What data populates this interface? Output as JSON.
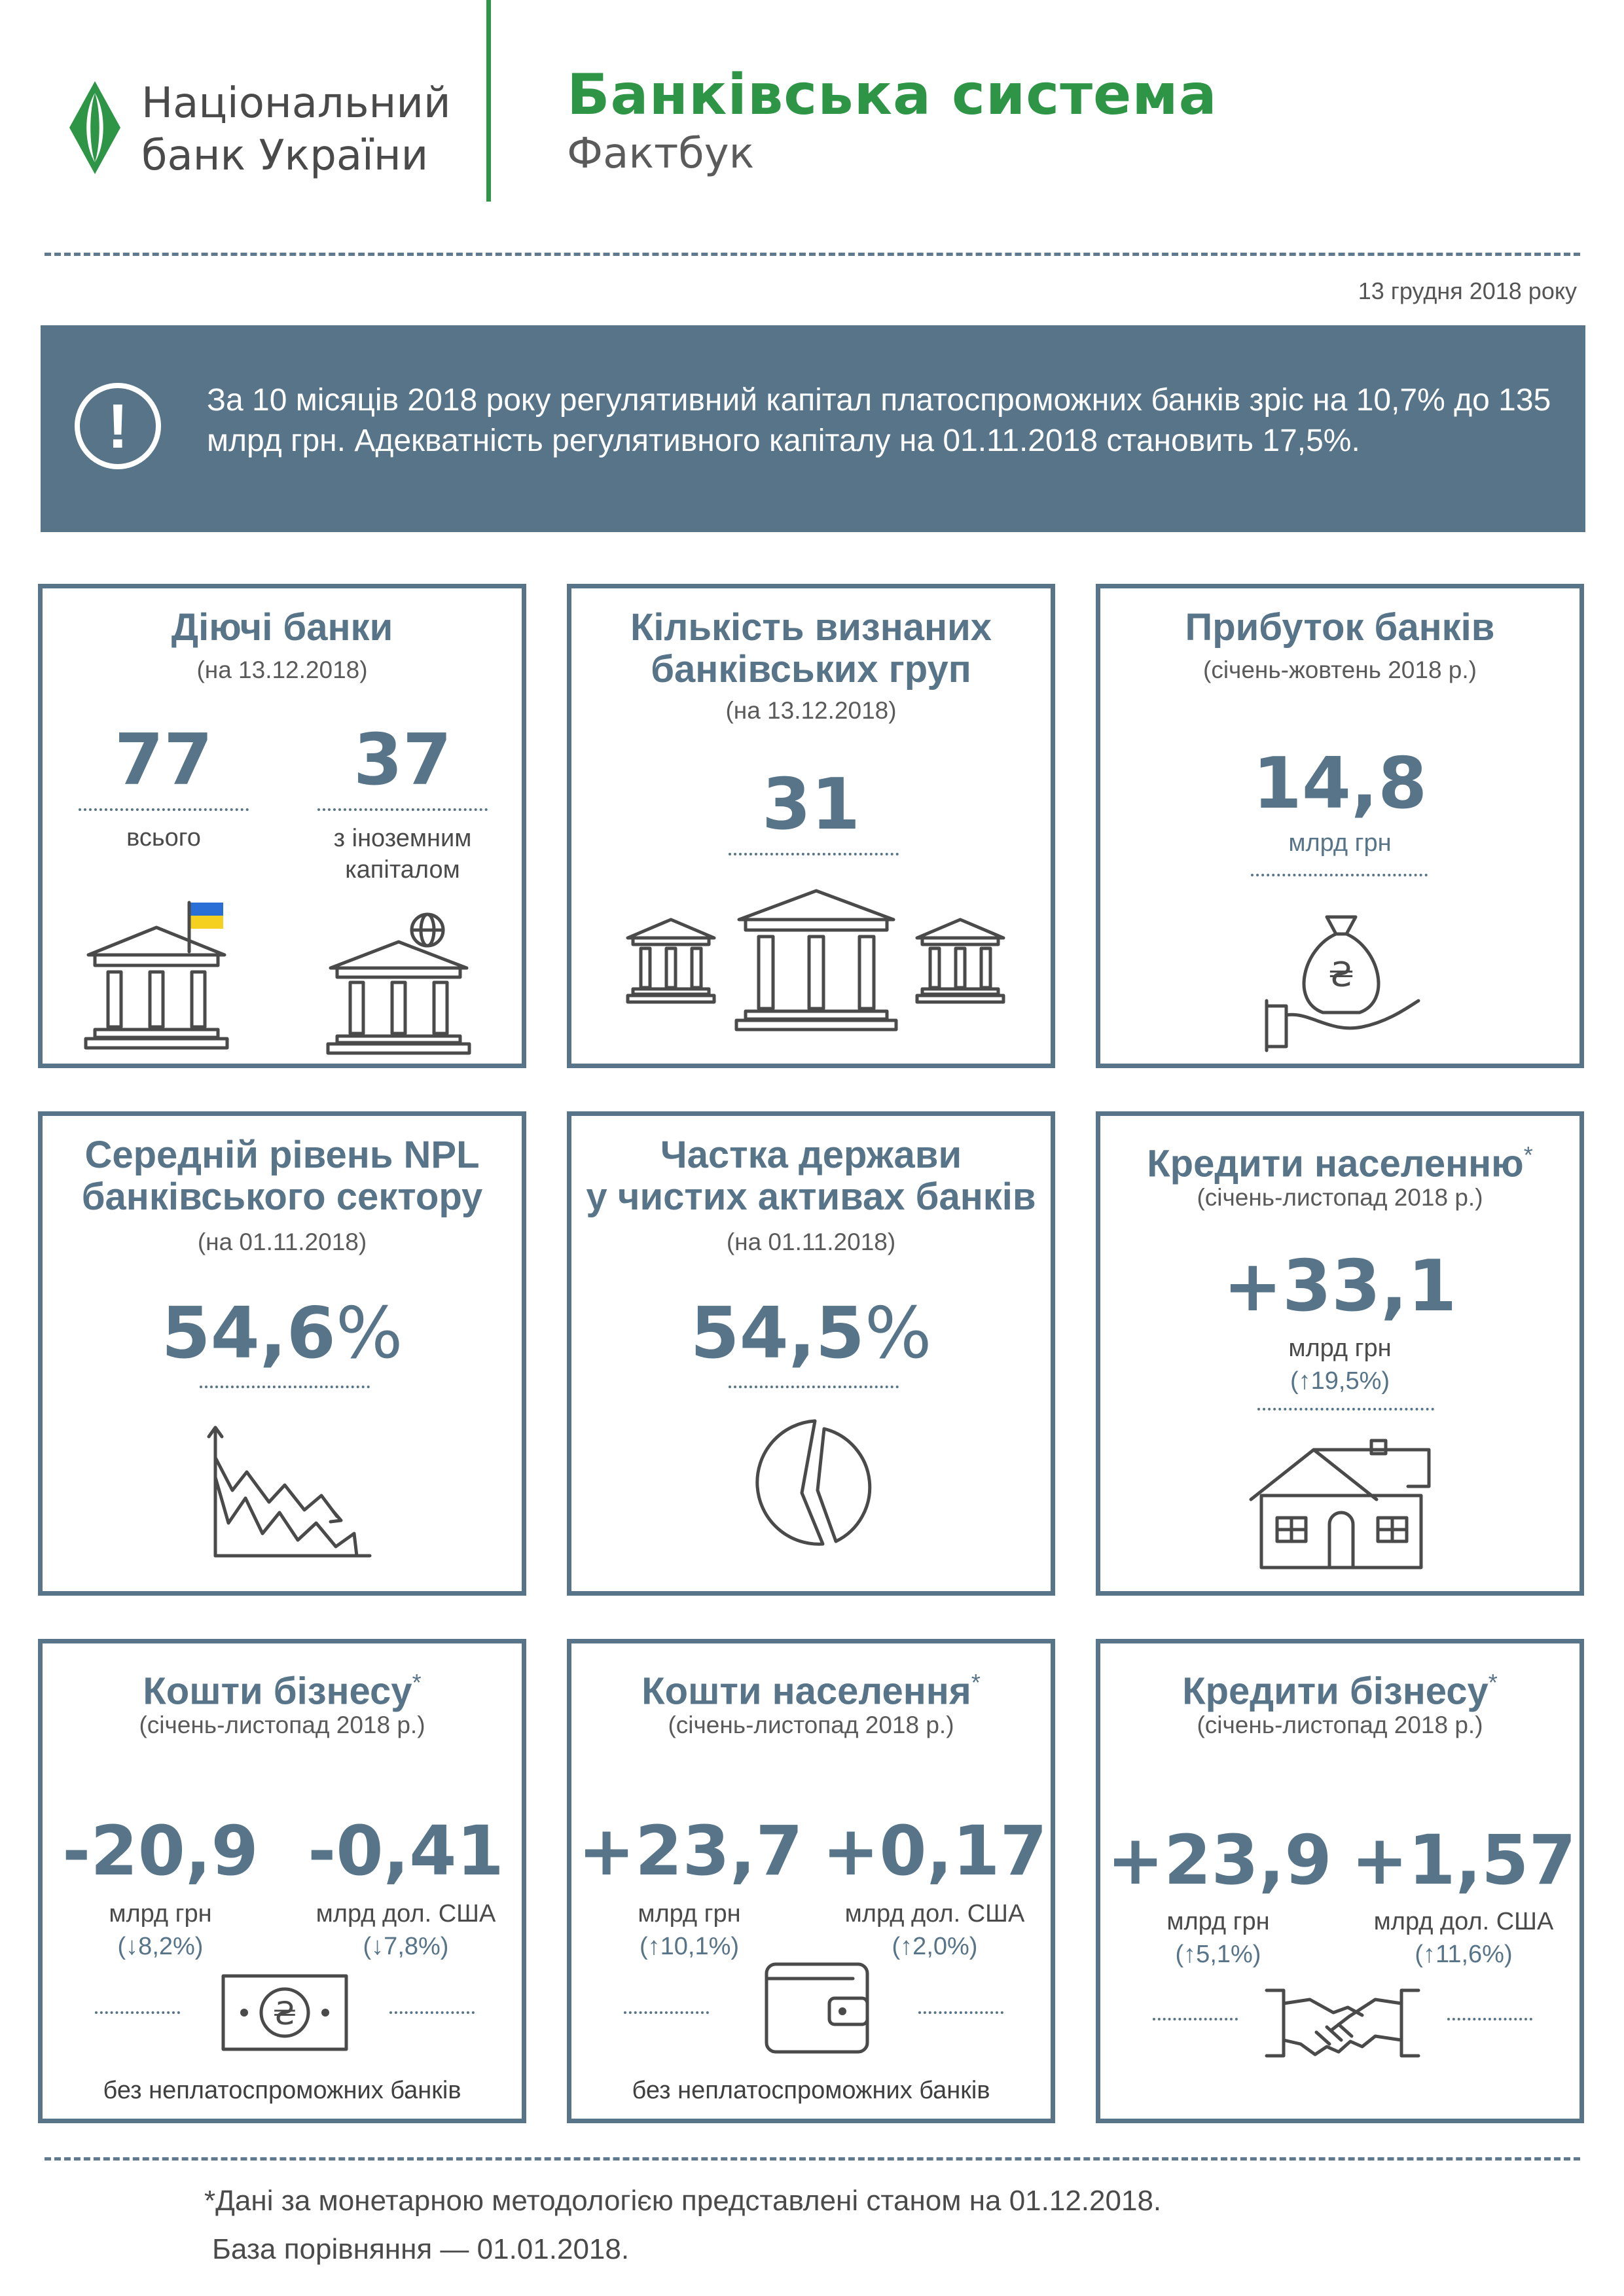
{
  "header": {
    "logo_line1": "Національний",
    "logo_line2": "банк України",
    "title": "Банківська система",
    "subtitle": "Фактбук",
    "date": "13 грудня 2018 року"
  },
  "banner": {
    "icon": "exclamation-circle-icon",
    "text": "За 10 місяців 2018 року регулятивний капітал платоспроможних банків зріс на 10,7% до 135 млрд грн. Адекватність регулятивного капіталу на 01.11.2018 становить 17,5%."
  },
  "cards": {
    "active_banks": {
      "title": "Діючі банки",
      "subtitle": "(на 13.12.2018)",
      "total_value": "77",
      "total_label": "всього",
      "foreign_value": "37",
      "foreign_label_1": "з іноземним",
      "foreign_label_2": "капіталом",
      "icons": [
        "bank-with-ukraine-flag-icon",
        "bank-with-globe-icon"
      ]
    },
    "bank_groups": {
      "title_1": "Кількість визнаних",
      "title_2": "банківських груп",
      "subtitle": "(на 13.12.2018)",
      "value": "31",
      "icon": "three-banks-icon"
    },
    "profit": {
      "title": "Прибуток банків",
      "subtitle": "(січень-жовтень 2018 р.)",
      "value": "14,8",
      "unit": "млрд грн",
      "icon": "money-bag-hand-icon"
    },
    "npl": {
      "title_1": "Середній рівень NPL",
      "title_2": "банківського сектору",
      "subtitle": "(на 01.11.2018)",
      "value": "54,6",
      "percent": "%",
      "icon": "declining-chart-icon"
    },
    "state_share": {
      "title_1": "Частка держави",
      "title_2": "у чистих активах банків",
      "subtitle": "(на 01.11.2018)",
      "value": "54,5",
      "percent": "%",
      "icon": "pie-chart-icon"
    },
    "household_loans": {
      "title": "Кредити населенню",
      "star": "*",
      "subtitle": "(січень-листопад 2018 р.)",
      "value": "+33,1",
      "unit": "млрд грн",
      "change": "(↑19,5%)",
      "icon": "house-icon"
    },
    "business_funds": {
      "title": "Кошти бізнесу",
      "star": "*",
      "subtitle": "(січень-листопад 2018 р.)",
      "uah_value": "-20,9",
      "uah_unit": "млрд грн",
      "uah_change": "(↓8,2%)",
      "usd_value": "-0,41",
      "usd_unit": "млрд дол. США",
      "usd_change": "(↓7,8%)",
      "note": "без неплатоспроможних банків",
      "icon": "banknote-icon"
    },
    "household_funds": {
      "title": "Кошти населення",
      "star": "*",
      "subtitle": "(січень-листопад 2018 р.)",
      "uah_value": "+23,7",
      "uah_unit": "млрд грн",
      "uah_change": "(↑10,1%)",
      "usd_value": "+0,17",
      "usd_unit": "млрд дол. США",
      "usd_change": "(↑2,0%)",
      "note": "без неплатоспроможних банків",
      "icon": "wallet-icon"
    },
    "business_loans": {
      "title": "Кредити бізнесу",
      "star": "*",
      "subtitle": "(січень-листопад 2018 р.)",
      "uah_value": "+23,9",
      "uah_unit": "млрд грн",
      "uah_change": "(↑5,1%)",
      "usd_value": "+1,57",
      "usd_unit": "млрд дол. США",
      "usd_change": "(↑11,6%)",
      "icon": "handshake-icon"
    }
  },
  "footnote": {
    "line1": "*Дані за монетарною методологією представлені станом на 01.12.2018.",
    "line2": "База порівняння — 01.01.2018."
  },
  "colors": {
    "brand_green": "#2d9545",
    "accent_slate": "#577488",
    "flag_blue": "#2a6fd6",
    "flag_yellow": "#f5d020"
  }
}
